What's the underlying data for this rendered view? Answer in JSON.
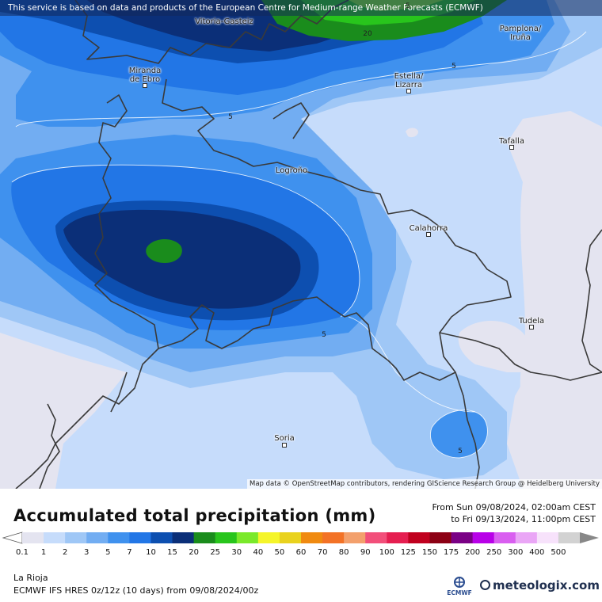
{
  "banner_text": "This service is based on data and products of the European Centre for Medium-range Weather Forecasts (ECMWF)",
  "attribution": "Map data © OpenStreetMap contributors, rendering GIScience Research Group @ Heidelberg University",
  "title": "Accumulated total precipitation (mm)",
  "date_from": "From Sun 09/08/2024, 02:00am CEST",
  "date_to": "to Fri 09/13/2024, 11:00pm CEST",
  "region": "La Rioja",
  "model": "ECMWF IFS HRES 0z/12z (10 days) from 09/08/2024/00z",
  "brand": "meteologix.com",
  "ecmwf_label": "ECMWF",
  "cities": [
    {
      "name": "Vitoria-Gasteiz"
    },
    {
      "name": "Pamplona/\nIruña"
    },
    {
      "name": "Miranda\nde Ebro"
    },
    {
      "name": "Estella/\nLizarra"
    },
    {
      "name": "Tafalla"
    },
    {
      "name": "Logroño"
    },
    {
      "name": "Calahorra"
    },
    {
      "name": "Tudela"
    },
    {
      "name": "Soria"
    }
  ],
  "contour_labels": [
    "5",
    "5",
    "5",
    "5",
    "5",
    "20"
  ],
  "legend": {
    "labels": [
      "0.1",
      "1",
      "2",
      "3",
      "5",
      "7",
      "10",
      "15",
      "20",
      "25",
      "30",
      "40",
      "50",
      "60",
      "70",
      "80",
      "90",
      "100",
      "125",
      "150",
      "175",
      "200",
      "250",
      "300",
      "400",
      "500"
    ],
    "colors": [
      "#e4e4f0",
      "#c6dcfb",
      "#9fc7f6",
      "#72adf2",
      "#3f91ee",
      "#2276e6",
      "#0d4fb0",
      "#0b2f78",
      "#1a8c1c",
      "#28c51c",
      "#7ae92a",
      "#f5f52a",
      "#e9d21e",
      "#f08a10",
      "#f37226",
      "#f3a06c",
      "#f24f7a",
      "#e51e50",
      "#c0001e",
      "#8c0014",
      "#7a0085",
      "#b800e8",
      "#d95ef0",
      "#eaa6f6",
      "#f7e2fb",
      "#d2d2d2"
    ]
  }
}
